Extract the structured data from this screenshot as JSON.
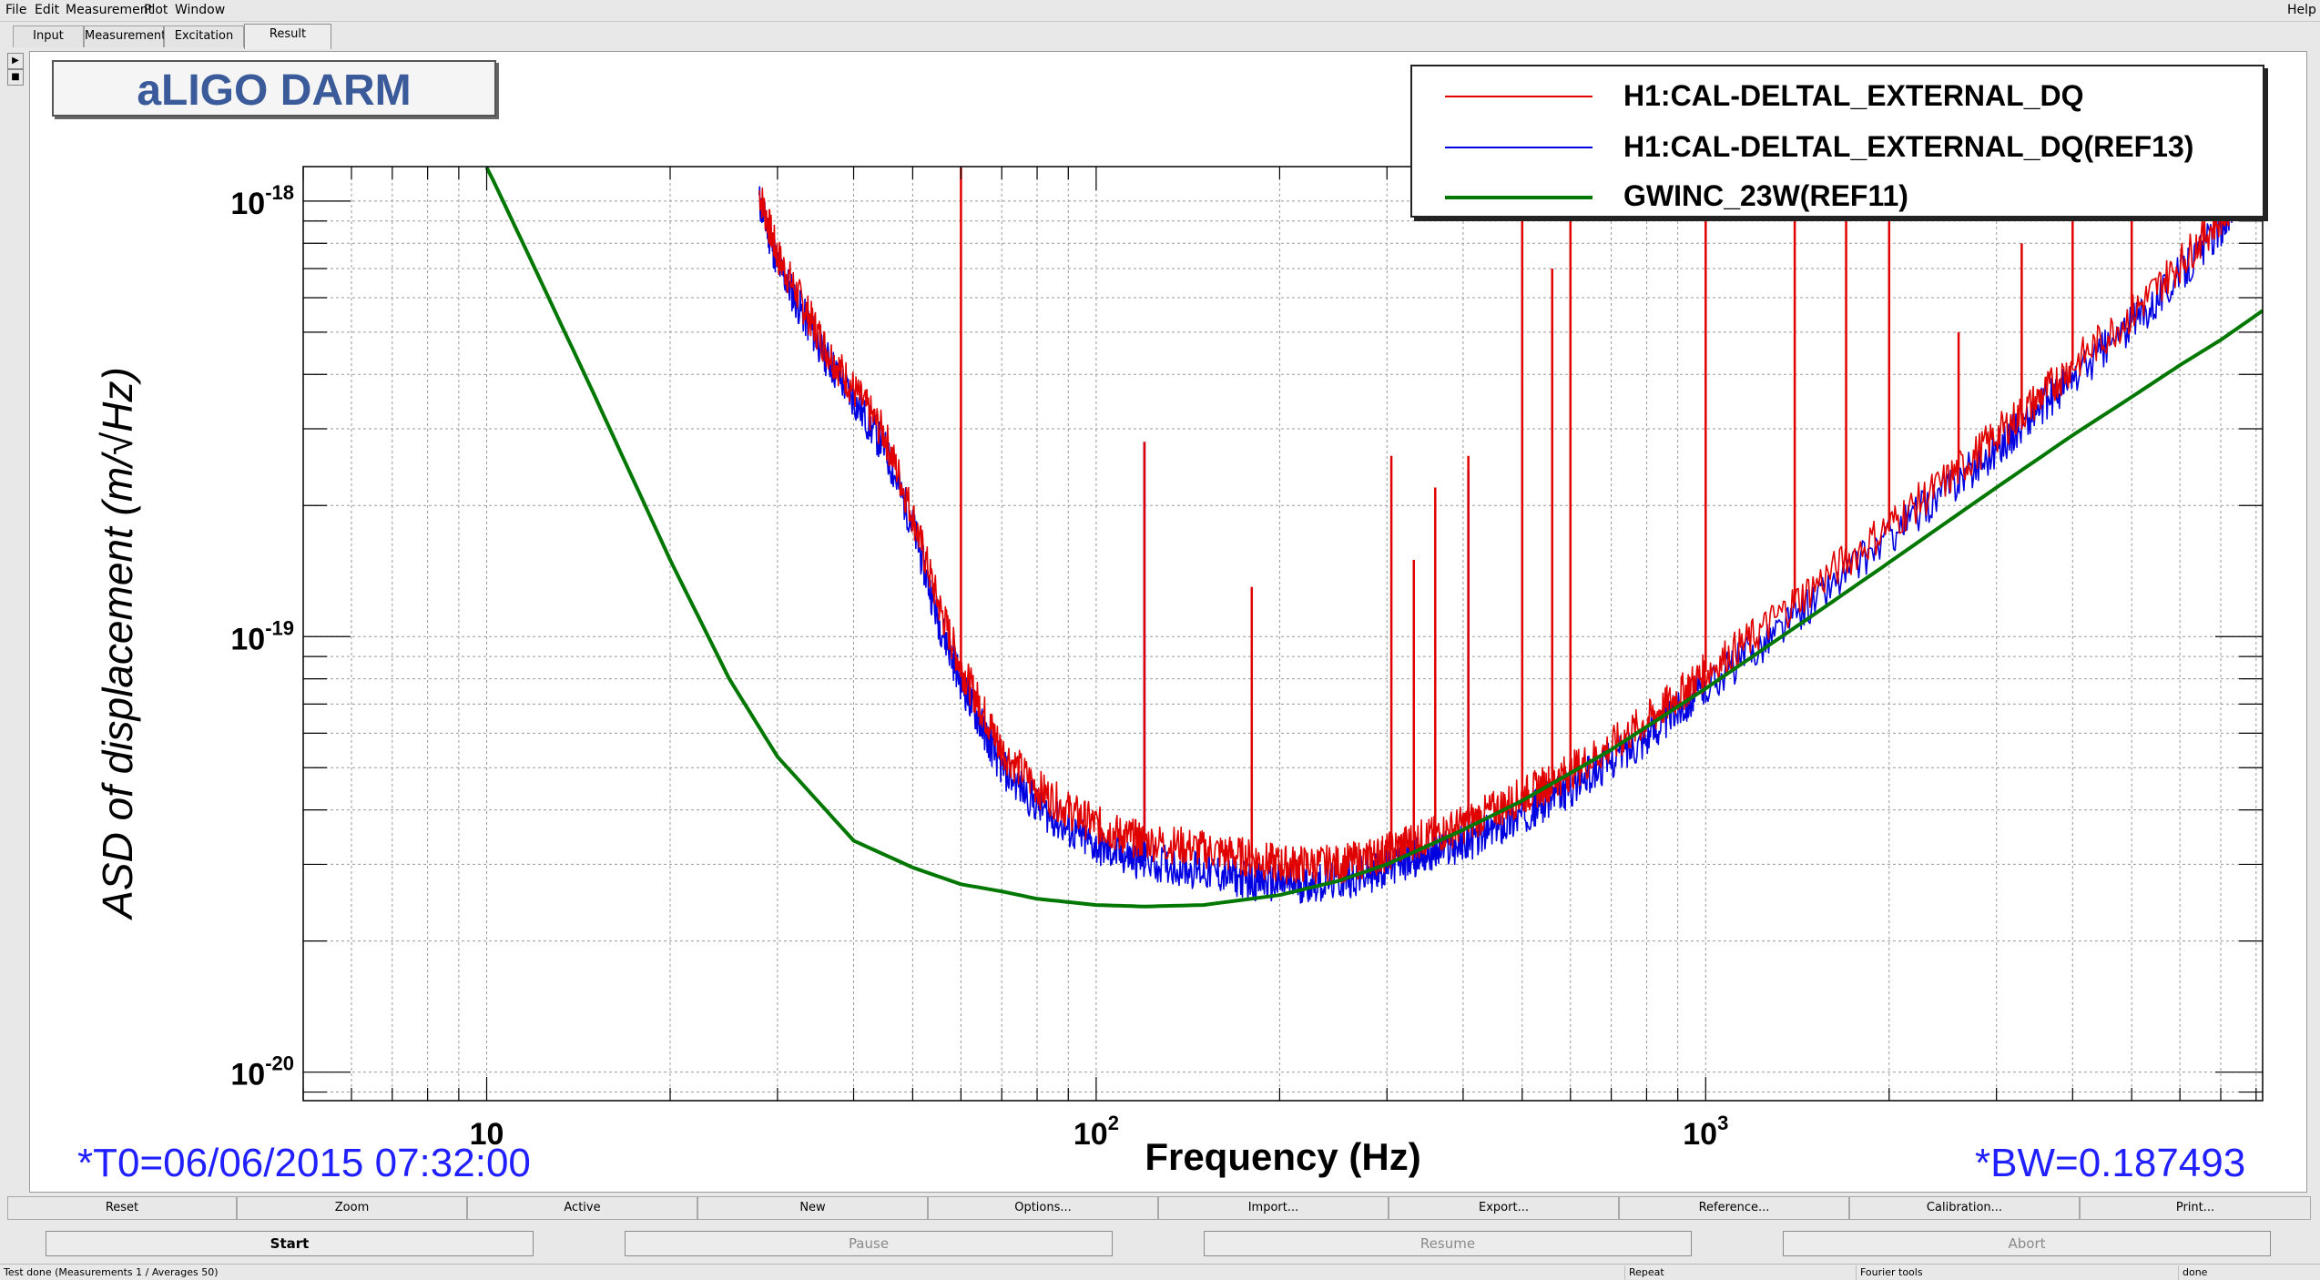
{
  "menu": {
    "file": "File",
    "edit": "Edit",
    "measurement": "Measurement",
    "plot": "Plot",
    "window": "Window",
    "help": "Help"
  },
  "tabs": [
    "Input",
    "Measurement",
    "Excitation",
    "Result"
  ],
  "active_tab": "Result",
  "plot": {
    "title": "aLIGO DARM",
    "t0": "*T0=06/06/2015 07:32:00",
    "bw": "*BW=0.187493"
  },
  "chart_data": {
    "type": "line",
    "title": "aLIGO DARM",
    "xlabel": "Frequency (Hz)",
    "ylabel": "ASD of displacement (m/√Hz)",
    "x_scale": "log",
    "y_scale": "log",
    "xlim": [
      5,
      8200
    ],
    "ylim": [
      8.6e-21,
      1.2e-18
    ],
    "x_ticks": [
      {
        "value": 10,
        "base": "10",
        "exp": ""
      },
      {
        "value": 100,
        "base": "10",
        "exp": "2"
      },
      {
        "value": 1000,
        "base": "10",
        "exp": "3"
      }
    ],
    "y_ticks": [
      {
        "value": 1e-18,
        "base": "10",
        "exp": "-18"
      },
      {
        "value": 1e-19,
        "base": "10",
        "exp": "-19"
      },
      {
        "value": 1e-20,
        "base": "10",
        "exp": "-20"
      }
    ],
    "grid": true,
    "legend_position": "top-right",
    "series": [
      {
        "name": "H1:CAL-DELTAL_EXTERNAL_DQ",
        "color": "#e00000",
        "x": [
          28,
          30,
          33,
          36,
          40,
          45,
          50,
          55,
          60,
          65,
          70,
          80,
          90,
          100,
          110,
          120,
          140,
          160,
          180,
          200,
          220,
          250,
          280,
          300,
          330,
          360,
          400,
          450,
          500,
          550,
          600,
          700,
          800,
          900,
          1000,
          1200,
          1500,
          2000,
          2500,
          3000,
          3500,
          4000,
          5000,
          6000,
          7000,
          7500
        ],
        "y": [
          1.05e-18,
          7.5e-19,
          5.8e-19,
          4.6e-19,
          3.7e-19,
          2.9e-19,
          1.9e-19,
          1.2e-19,
          8.5e-20,
          6.8e-20,
          5.5e-20,
          4.5e-20,
          4e-20,
          3.7e-20,
          3.5e-20,
          3.4e-20,
          3.3e-20,
          3.2e-20,
          3.1e-20,
          3e-20,
          3e-20,
          3e-20,
          3.1e-20,
          3.2e-20,
          3.4e-20,
          3.5e-20,
          3.7e-20,
          4e-20,
          4.3e-20,
          4.6e-20,
          4.9e-20,
          5.6e-20,
          6.4e-20,
          7.3e-20,
          8.3e-20,
          1e-19,
          1.3e-19,
          1.8e-19,
          2.3e-19,
          2.9e-19,
          3.5e-19,
          4.2e-19,
          5.5e-19,
          7.2e-19,
          9.2e-19,
          1.05e-18
        ],
        "lines": [
          {
            "x": 60,
            "y": 1.2e-18
          },
          {
            "x": 120,
            "y": 2.8e-19
          },
          {
            "x": 180,
            "y": 1.3e-19
          },
          {
            "x": 305,
            "y": 2.6e-19
          },
          {
            "x": 332,
            "y": 1.5e-19
          },
          {
            "x": 360,
            "y": 2.2e-19
          },
          {
            "x": 408,
            "y": 2.6e-19
          },
          {
            "x": 500,
            "y": 1.2e-18
          },
          {
            "x": 560,
            "y": 7e-19
          },
          {
            "x": 600,
            "y": 1.2e-18
          },
          {
            "x": 1000,
            "y": 1.2e-18
          },
          {
            "x": 1400,
            "y": 1.2e-18
          },
          {
            "x": 1700,
            "y": 1.2e-18
          },
          {
            "x": 2000,
            "y": 1.2e-18
          },
          {
            "x": 2600,
            "y": 5e-19
          },
          {
            "x": 3300,
            "y": 8e-19
          },
          {
            "x": 4000,
            "y": 1.2e-18
          },
          {
            "x": 5000,
            "y": 1.2e-18
          }
        ]
      },
      {
        "name": "H1:CAL-DELTAL_EXTERNAL_DQ(REF13)",
        "color": "#0000e0",
        "x": [
          28,
          30,
          33,
          36,
          40,
          45,
          50,
          55,
          60,
          65,
          70,
          80,
          90,
          100,
          110,
          120,
          140,
          160,
          180,
          200,
          220,
          250,
          280,
          300,
          330,
          360,
          400,
          450,
          500,
          550,
          600,
          700,
          800,
          900,
          1000,
          1200,
          1500,
          2000,
          2500,
          3000,
          3500,
          4000,
          5000,
          6000,
          7000,
          7500
        ],
        "y": [
          1e-18,
          7.2e-19,
          5.5e-19,
          4.4e-19,
          3.5e-19,
          2.7e-19,
          1.8e-19,
          1.1e-19,
          7.9e-20,
          6.2e-20,
          5e-20,
          4.1e-20,
          3.6e-20,
          3.3e-20,
          3.15e-20,
          3.05e-20,
          2.95e-20,
          2.85e-20,
          2.75e-20,
          2.7e-20,
          2.7e-20,
          2.75e-20,
          2.85e-20,
          2.95e-20,
          3.1e-20,
          3.2e-20,
          3.35e-20,
          3.6e-20,
          3.9e-20,
          4.2e-20,
          4.5e-20,
          5.2e-20,
          5.9e-20,
          6.8e-20,
          7.7e-20,
          9.3e-20,
          1.2e-19,
          1.7e-19,
          2.2e-19,
          2.7e-19,
          3.3e-19,
          3.9e-19,
          5.2e-19,
          6.8e-19,
          8.7e-19,
          1e-18
        ],
        "lines": [
          {
            "x": 120,
            "y": 2.8e-19
          },
          {
            "x": 408,
            "y": 2.4e-19
          }
        ]
      },
      {
        "name": "GWINC_23W(REF11)",
        "color": "#007700",
        "x": [
          10,
          12,
          15,
          20,
          25,
          30,
          40,
          50,
          60,
          70,
          80,
          100,
          120,
          150,
          200,
          250,
          300,
          400,
          500,
          700,
          1000,
          1500,
          2000,
          3000,
          4000,
          5000,
          6000,
          7000,
          8200
        ],
        "y": [
          1.2e-18,
          7e-19,
          3.6e-19,
          1.5e-19,
          8e-20,
          5.3e-20,
          3.4e-20,
          2.95e-20,
          2.7e-20,
          2.6e-20,
          2.5e-20,
          2.42e-20,
          2.4e-20,
          2.42e-20,
          2.55e-20,
          2.75e-20,
          3e-20,
          3.6e-20,
          4.2e-20,
          5.5e-20,
          7.6e-20,
          1.12e-19,
          1.48e-19,
          2.2e-19,
          2.9e-19,
          3.55e-19,
          4.2e-19,
          4.8e-19,
          5.6e-19
        ]
      }
    ]
  },
  "toolbar1": [
    "Reset",
    "Zoom",
    "Active",
    "New",
    "Options...",
    "Import...",
    "Export...",
    "Reference...",
    "Calibration...",
    "Print..."
  ],
  "toolbar2": [
    "Start",
    "Pause",
    "Resume",
    "Abort"
  ],
  "status": {
    "message": "Test done (Measurements 1 / Averages 50)",
    "repeat": "Repeat",
    "tools": "Fourier tools",
    "state": "done"
  },
  "colors": {
    "title": "#3a5a9a",
    "info_text": "#1f1fff",
    "green_trace": "#007700",
    "red_trace": "#e00000",
    "blue_trace": "#0000e0"
  }
}
